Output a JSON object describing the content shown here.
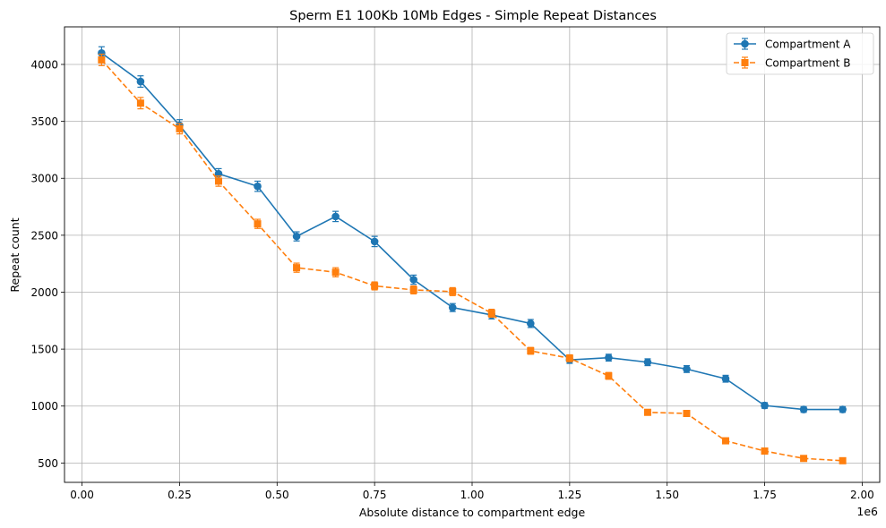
{
  "chart_data": {
    "type": "line",
    "title": "Sperm E1 100Kb 10Mb Edges - Simple Repeat Distances",
    "xlabel": "Absolute distance to compartment edge",
    "ylabel": "Repeat count",
    "x_offset_label": "1e6",
    "xlim": [
      -0.045,
      2.045
    ],
    "ylim": [
      330,
      4330
    ],
    "x_ticks": [
      0.0,
      0.25,
      0.5,
      0.75,
      1.0,
      1.25,
      1.5,
      1.75,
      2.0
    ],
    "x_tick_labels": [
      "0.00",
      "0.25",
      "0.50",
      "0.75",
      "1.00",
      "1.25",
      "1.50",
      "1.75",
      "2.00"
    ],
    "y_ticks": [
      500,
      1000,
      1500,
      2000,
      2500,
      3000,
      3500,
      4000
    ],
    "y_tick_labels": [
      "500",
      "1000",
      "1500",
      "2000",
      "2500",
      "3000",
      "3500",
      "4000"
    ],
    "grid": true,
    "legend_position": "top-right",
    "x": [
      0.05,
      0.15,
      0.25,
      0.35,
      0.45,
      0.55,
      0.65,
      0.75,
      0.85,
      0.95,
      1.05,
      1.15,
      1.25,
      1.35,
      1.45,
      1.55,
      1.65,
      1.75,
      1.85,
      1.95
    ],
    "series": [
      {
        "name": "Compartment A",
        "color": "#1f77b4",
        "marker": "circle",
        "linestyle": "solid",
        "values": [
          4100,
          3850,
          3465,
          3040,
          2930,
          2490,
          2665,
          2445,
          2110,
          1865,
          1800,
          1725,
          1405,
          1425,
          1385,
          1325,
          1240,
          1005,
          970,
          970
        ],
        "errors": [
          55,
          50,
          50,
          45,
          45,
          40,
          45,
          45,
          40,
          35,
          35,
          35,
          30,
          30,
          30,
          30,
          30,
          25,
          25,
          25
        ]
      },
      {
        "name": "Compartment B",
        "color": "#ff7f0e",
        "marker": "square",
        "linestyle": "dashed",
        "values": [
          4040,
          3660,
          3435,
          2975,
          2600,
          2215,
          2175,
          2055,
          2020,
          2005,
          1815,
          1485,
          1420,
          1265,
          945,
          935,
          695,
          605,
          540,
          520
        ],
        "errors": [
          50,
          50,
          45,
          45,
          40,
          40,
          40,
          35,
          35,
          35,
          35,
          30,
          30,
          30,
          25,
          25,
          20,
          20,
          20,
          20
        ]
      }
    ]
  }
}
